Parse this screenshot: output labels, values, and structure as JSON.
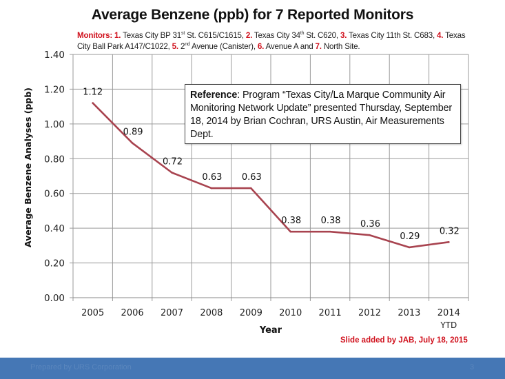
{
  "slide": {
    "monitors_label": "Monitors:",
    "monitors": [
      {
        "num": "1.",
        "text": " Texas City BP 31",
        "sup": "st",
        "after": " St. C615/C1615, "
      },
      {
        "num": "2.",
        "text": " Texas City 34",
        "sup": "th",
        "after": " St. C620, "
      },
      {
        "num": "3.",
        "text": " Texas City 11th St. C683, ",
        "sup": "",
        "after": ""
      },
      {
        "num": "4.",
        "text": " Texas City Ball Park A147/C1022, ",
        "sup": "",
        "after": ""
      },
      {
        "num": "5.",
        "text": " 2",
        "sup": "nd",
        "after": " Avenue (Canister), "
      },
      {
        "num": "6.",
        "text": " Avenue A and ",
        "sup": "",
        "after": ""
      },
      {
        "num": "7.",
        "text": " North Site.",
        "sup": "",
        "after": ""
      }
    ],
    "reference_label": "Reference",
    "reference_text": ": Program “Texas City/La Marque Community Air Monitoring Network Update” presented Thursday, September 18, 2014 by Brian Cochran, URS Austin, Air Measurements Dept.",
    "slide_note": "Slide added by JAB, July 18, 2015",
    "footer_text": "Prepared by URS Corporation",
    "page_number": "3",
    "colors": {
      "line": "#a8434f",
      "accent_red": "#d0101c",
      "footer_blue": "#4577b5"
    }
  },
  "chart_data": {
    "type": "line",
    "title": "Average Benzene (ppb) for 7 Reported Monitors",
    "xlabel": "Year",
    "ylabel": "Average Benzene Analyses (ppb)",
    "categories": [
      "2005",
      "2006",
      "2007",
      "2008",
      "2009",
      "2010",
      "2011",
      "2012",
      "2013",
      "2014"
    ],
    "category_sublabels": [
      "",
      "",
      "",
      "",
      "",
      "",
      "",
      "",
      "",
      "YTD"
    ],
    "series": [
      {
        "name": "Average Benzene",
        "values": [
          1.12,
          0.89,
          0.72,
          0.63,
          0.63,
          0.38,
          0.38,
          0.36,
          0.29,
          0.32
        ]
      }
    ],
    "data_labels": [
      "1.12",
      "0.89",
      "0.72",
      "0.63",
      "0.63",
      "0.38",
      "0.38",
      "0.36",
      "0.29",
      "0.32"
    ],
    "ylim": [
      0,
      1.4
    ],
    "yticks": [
      0,
      0.2,
      0.4,
      0.6,
      0.8,
      1.0,
      1.2,
      1.4
    ],
    "ytick_labels": [
      "0.00",
      "0.20",
      "0.40",
      "0.60",
      "0.80",
      "1.00",
      "1.20",
      "1.40"
    ],
    "grid": true,
    "legend": "none"
  }
}
